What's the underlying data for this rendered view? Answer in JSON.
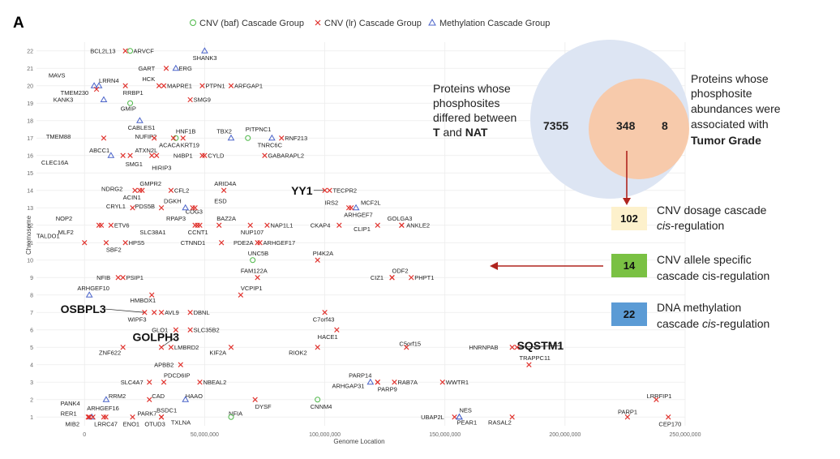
{
  "panel_label": "A",
  "chart_data": {
    "type": "scatter",
    "title": "",
    "xlabel": "Genome Location",
    "ylabel": "Chromosome",
    "xlim": [
      -20000000,
      250000000
    ],
    "ylim": [
      0.5,
      22.5
    ],
    "x_ticks": [
      0,
      50000000,
      100000000,
      150000000,
      200000000,
      250000000
    ],
    "x_tick_labels": [
      "0",
      "50,000,000",
      "100,000,000",
      "150,000,000",
      "200,000,000",
      "250,000,000"
    ],
    "y_ticks": [
      1,
      2,
      3,
      4,
      5,
      6,
      7,
      8,
      9,
      10,
      11,
      12,
      13,
      14,
      15,
      16,
      17,
      18,
      19,
      20,
      21,
      22
    ],
    "grid": true,
    "legend": [
      {
        "key": "baf",
        "label": "CNV (baf) Cascade Group",
        "color": "#4db848",
        "marker": "circle"
      },
      {
        "key": "lr",
        "label": "CNV (lr) Cascade Group",
        "color": "#e0302b",
        "marker": "x"
      },
      {
        "key": "meth",
        "label": "Methylation Cascade Group",
        "color": "#4a63c9",
        "marker": "triangle"
      }
    ],
    "points": [
      {
        "g": "BCL2L13",
        "x": 17000000,
        "y": 22,
        "t": "lr",
        "ldx": -16000000.0
      },
      {
        "g": "ARVCF",
        "x": 19000000,
        "y": 22,
        "t": "baf",
        "ldx": 0
      },
      {
        "g": "SHANK3",
        "x": 50000000,
        "y": 22,
        "t": "meth",
        "lx": 45000000.0,
        "ly": 21.6
      },
      {
        "g": "GART",
        "x": 34000000,
        "y": 21,
        "t": "lr",
        "ldx": -13000000.0
      },
      {
        "g": "ERG",
        "x": 38000000,
        "y": 21,
        "t": "meth",
        "ldx": -100000.0
      },
      {
        "g": "MAVS",
        "x": 4000000,
        "y": 20,
        "t": "meth",
        "lx": -15000000.0,
        "ly": 20.6
      },
      {
        "g": "LRRN4",
        "x": 6000000,
        "y": 20,
        "t": "meth",
        "lx": 6000000.0,
        "ly": 20.3
      },
      {
        "g": "HCK",
        "x": 31000000,
        "y": 20,
        "t": "lr",
        "lx": 24000000.0,
        "ly": 20.4
      },
      {
        "g": "MAPRE1",
        "x": 33000000,
        "y": 20,
        "t": "lr",
        "ldx": 0
      },
      {
        "g": "PTPN1",
        "x": 49000000,
        "y": 20,
        "t": "lr",
        "ldx": 0
      },
      {
        "g": "ARFGAP1",
        "x": 61000000,
        "y": 20,
        "t": "lr",
        "ldx": 0
      },
      {
        "g": "TMEM230",
        "x": 5000000,
        "y": 19.8,
        "t": "lr",
        "lx": -10000000.0,
        "ly": 19.6
      },
      {
        "g": "RRBP1",
        "x": 17000000,
        "y": 20,
        "t": "lr",
        "lx": 16000000.0,
        "ly": 19.6
      },
      {
        "g": "KANK3",
        "x": 8000000,
        "y": 19.2,
        "t": "meth",
        "lx": -13000000.0,
        "ly": 19.2
      },
      {
        "g": "SMG9",
        "x": 44000000,
        "y": 19.2,
        "t": "lr",
        "ldx": 0
      },
      {
        "g": "GMIP",
        "x": 19000000,
        "y": 19,
        "t": "baf",
        "lx": 15000000.0,
        "ly": 18.7
      },
      {
        "g": "CABLES1",
        "x": 23000000,
        "y": 18,
        "t": "meth",
        "lx": 18000000.0,
        "ly": 17.6
      },
      {
        "g": "HNF1B",
        "x": 38000000,
        "y": 17,
        "t": "baf",
        "lx": 38000000.0,
        "ly": 17.4
      },
      {
        "g": "TMEM88",
        "x": 8000000,
        "y": 17,
        "t": "lr",
        "lx": -16000000.0,
        "ly": 17.1
      },
      {
        "g": "NUFIP2",
        "x": 29000000,
        "y": 17,
        "t": "lr",
        "lx": 21000000.0,
        "ly": 17.1
      },
      {
        "g": "ACACA",
        "x": 37000000,
        "y": 17,
        "t": "lr",
        "lx": 31000000.0,
        "ly": 16.6
      },
      {
        "g": "KRT19",
        "x": 41000000,
        "y": 17,
        "t": "lr",
        "lx": 40000000.0,
        "ly": 16.6
      },
      {
        "g": "TBX2",
        "x": 61000000,
        "y": 17,
        "t": "meth",
        "lx": 55000000.0,
        "ly": 17.4
      },
      {
        "g": "PITPNC1",
        "x": 68000000,
        "y": 17,
        "t": "baf",
        "lx": 67000000.0,
        "ly": 17.5
      },
      {
        "g": "TNRC6C",
        "x": 78000000,
        "y": 17,
        "t": "meth",
        "lx": 72000000.0,
        "ly": 16.6
      },
      {
        "g": "RNF213",
        "x": 82000000,
        "y": 17,
        "t": "lr",
        "ldx": 0
      },
      {
        "g": "ABCC1",
        "x": 16000000,
        "y": 16,
        "t": "lr",
        "lx": 2000000.0,
        "ly": 16.3
      },
      {
        "g": "ATXN2L",
        "x": 28000000,
        "y": 16,
        "t": "lr",
        "lx": 21000000.0,
        "ly": 16.3
      },
      {
        "g": "N4BP1",
        "x": 49000000,
        "y": 16,
        "t": "lr",
        "lx": 37000000.0,
        "ly": 16
      },
      {
        "g": "CYLD",
        "x": 50000000,
        "y": 16,
        "t": "lr",
        "ldx": 0
      },
      {
        "g": "GABARAPL2",
        "x": 75000000,
        "y": 16,
        "t": "lr",
        "ldx": 0
      },
      {
        "g": "CLEC16A",
        "x": 11000000,
        "y": 16,
        "t": "meth",
        "lx": -18000000.0,
        "ly": 15.6
      },
      {
        "g": "SMG1",
        "x": 19000000,
        "y": 16,
        "t": "lr",
        "lx": 17000000.0,
        "ly": 15.5
      },
      {
        "g": "HIRIP3",
        "x": 30000000,
        "y": 16,
        "t": "lr",
        "lx": 28000000.0,
        "ly": 15.3
      },
      {
        "g": "NDRG2",
        "x": 21000000,
        "y": 14,
        "t": "lr",
        "lx": 7000000.0,
        "ly": 14.1
      },
      {
        "g": "GMPR2",
        "x": 24000000,
        "y": 14,
        "t": "lr",
        "lx": 23000000.0,
        "ly": 14.4
      },
      {
        "g": "CFL2",
        "x": 36000000,
        "y": 14,
        "t": "lr",
        "ldx": 0
      },
      {
        "g": "ARID4A",
        "x": 58000000,
        "y": 14,
        "t": "lr",
        "lx": 54000000.0,
        "ly": 14.4
      },
      {
        "g": "YY1",
        "x": 100000000,
        "y": 14,
        "t": "lr",
        "big": true,
        "lx": 86000000.0,
        "ly": 14
      },
      {
        "g": "TECPR2",
        "x": 102000000,
        "y": 14,
        "t": "lr",
        "ldx": 0
      },
      {
        "g": "ACIN1",
        "x": 23000000,
        "y": 14,
        "t": "lr",
        "lx": 16000000.0,
        "ly": 13.6
      },
      {
        "g": "CRYL1",
        "x": 20000000,
        "y": 13,
        "t": "lr",
        "lx": 9000000.0,
        "ly": 13.1
      },
      {
        "g": "PDS5B",
        "x": 32000000,
        "y": 13,
        "t": "lr",
        "lx": 21000000.0,
        "ly": 13.1
      },
      {
        "g": "DGKH",
        "x": 42000000,
        "y": 13,
        "t": "meth",
        "lx": 33000000.0,
        "ly": 13.4
      },
      {
        "g": "ESD",
        "x": 46000000,
        "y": 13,
        "t": "lr",
        "lx": 54000000.0,
        "ly": 13.4
      },
      {
        "g": "COG3",
        "x": 45000000,
        "y": 13,
        "t": "lr",
        "lx": 42000000.0,
        "ly": 12.8
      },
      {
        "g": "IRS2",
        "x": 110000000,
        "y": 13,
        "t": "lr",
        "lx": 100000000.0,
        "ly": 13.3
      },
      {
        "g": "MCF2L",
        "x": 113000000,
        "y": 13,
        "t": "meth",
        "lx": 115000000.0,
        "ly": 13.3
      },
      {
        "g": "ARHGEF7",
        "x": 111000000,
        "y": 13,
        "t": "lr",
        "lx": 108000000.0,
        "ly": 12.6
      },
      {
        "g": "NOP2",
        "x": 6000000,
        "y": 12,
        "t": "lr",
        "lx": -12000000.0,
        "ly": 12.4
      },
      {
        "g": "MLF2",
        "x": 7000000,
        "y": 12,
        "t": "lr",
        "lx": -11000000.0,
        "ly": 11.6
      },
      {
        "g": "ETV6",
        "x": 11000000,
        "y": 12,
        "t": "lr",
        "ldx": 0
      },
      {
        "g": "RPAP3",
        "x": 47000000,
        "y": 12,
        "t": "lr",
        "lx": 34000000.0,
        "ly": 12.4
      },
      {
        "g": "BAZ2A",
        "x": 56000000,
        "y": 12,
        "t": "lr",
        "lx": 55000000.0,
        "ly": 12.4
      },
      {
        "g": "SLC38A1",
        "x": 46000000,
        "y": 12,
        "t": "lr",
        "lx": 23000000.0,
        "ly": 11.6
      },
      {
        "g": "CCNT1",
        "x": 48000000,
        "y": 12,
        "t": "lr",
        "lx": 43000000.0,
        "ly": 11.6
      },
      {
        "g": "NUP107",
        "x": 69000000,
        "y": 12,
        "t": "lr",
        "lx": 65000000.0,
        "ly": 11.6
      },
      {
        "g": "NAP1L1",
        "x": 76000000,
        "y": 12,
        "t": "lr",
        "ldx": 0
      },
      {
        "g": "CKAP4",
        "x": 106000000,
        "y": 12,
        "t": "lr",
        "lx": 94000000.0,
        "ly": 12
      },
      {
        "g": "CLIP1",
        "x": 122000000,
        "y": 12,
        "t": "lr",
        "lx": 112000000.0,
        "ly": 11.8
      },
      {
        "g": "GOLGA3",
        "x": 132000000,
        "y": 12,
        "t": "lr",
        "lx": 126000000.0,
        "ly": 12.4
      },
      {
        "g": "ANKLE2",
        "x": 132000000,
        "y": 12,
        "t": "lr",
        "lx": 134000000.0,
        "ly": 12
      },
      {
        "g": "TALDO1",
        "x": 0,
        "y": 11,
        "t": "lr",
        "lx": -20000000.0,
        "ly": 11.4
      },
      {
        "g": "HPS5",
        "x": 17000000,
        "y": 11,
        "t": "lr",
        "ldx": 0
      },
      {
        "g": "SBF2",
        "x": 9000000,
        "y": 11,
        "t": "lr",
        "lx": 9000000.0,
        "ly": 10.6
      },
      {
        "g": "CTNND1",
        "x": 57000000,
        "y": 11,
        "t": "lr",
        "lx": 40000000.0,
        "ly": 11
      },
      {
        "g": "PDE2A",
        "x": 72000000,
        "y": 11,
        "t": "lr",
        "lx": 62000000.0,
        "ly": 11
      },
      {
        "g": "ARHGEF17",
        "x": 73000000,
        "y": 11,
        "t": "lr",
        "ldx": 0
      },
      {
        "g": "UNC5B",
        "x": 70000000,
        "y": 10,
        "t": "baf",
        "lx": 68000000.0,
        "ly": 10.4
      },
      {
        "g": "PI4K2A",
        "x": 97000000,
        "y": 10,
        "t": "lr",
        "lx": 95000000.0,
        "ly": 10.4
      },
      {
        "g": "NFIB",
        "x": 14000000,
        "y": 9,
        "t": "lr",
        "lx": 5000000.0,
        "ly": 9
      },
      {
        "g": "PSIP1",
        "x": 16000000,
        "y": 9,
        "t": "lr",
        "ldx": 0
      },
      {
        "g": "FAM122A",
        "x": 72000000,
        "y": 9,
        "t": "lr",
        "lx": 65000000.0,
        "ly": 9.4
      },
      {
        "g": "CIZ1",
        "x": 128000000,
        "y": 9,
        "t": "lr",
        "lx": 119000000.0,
        "ly": 9
      },
      {
        "g": "ODF2",
        "x": 128000000,
        "y": 9,
        "t": "lr",
        "lx": 128000000.0,
        "ly": 9.4
      },
      {
        "g": "PHPT1",
        "x": 136000000,
        "y": 9,
        "t": "lr",
        "ldx": 0
      },
      {
        "g": "ARHGEF10",
        "x": 2000000,
        "y": 8,
        "t": "meth",
        "lx": -3000000.0,
        "ly": 8.4
      },
      {
        "g": "VCPIP1",
        "x": 65000000,
        "y": 8,
        "t": "lr",
        "lx": 65000000.0,
        "ly": 8.4
      },
      {
        "g": "HMBOX1",
        "x": 28000000,
        "y": 8,
        "t": "lr",
        "lx": 19000000.0,
        "ly": 7.7
      },
      {
        "g": "OSBPL3",
        "x": 25000000,
        "y": 7,
        "t": "lr",
        "big": true,
        "lx": -10000000.0,
        "ly": 7.2
      },
      {
        "g": "AVL9",
        "x": 32000000,
        "y": 7,
        "t": "lr",
        "ldx": 0
      },
      {
        "g": "DBNL",
        "x": 44000000,
        "y": 7,
        "t": "lr",
        "ldx": 0
      },
      {
        "g": "WIPF3",
        "x": 29000000,
        "y": 7,
        "t": "lr",
        "lx": 18000000.0,
        "ly": 6.6
      },
      {
        "g": "C7orf43",
        "x": 100000000,
        "y": 7,
        "t": "lr",
        "lx": 95000000.0,
        "ly": 6.6
      },
      {
        "g": "GLO1",
        "x": 38000000,
        "y": 6,
        "t": "lr",
        "lx": 28000000.0,
        "ly": 6
      },
      {
        "g": "SLC35B2",
        "x": 44000000,
        "y": 6,
        "t": "lr",
        "ldx": 0
      },
      {
        "g": "HACE1",
        "x": 105000000,
        "y": 6,
        "t": "lr",
        "lx": 97000000.0,
        "ly": 5.6
      },
      {
        "g": "GOLPH3",
        "x": 32000000,
        "y": 5,
        "t": "lr",
        "big": true,
        "lx": 20000000.0,
        "ly": 5.6
      },
      {
        "g": "LMBRD2",
        "x": 36000000,
        "y": 5,
        "t": "lr",
        "ldx": 0
      },
      {
        "g": "KIF2A",
        "x": 61000000,
        "y": 5,
        "t": "lr",
        "lx": 52000000.0,
        "ly": 4.7
      },
      {
        "g": "ZNF622",
        "x": 16000000,
        "y": 5,
        "t": "lr",
        "lx": 6000000.0,
        "ly": 4.7
      },
      {
        "g": "RIOK2",
        "x": 97000000,
        "y": 5,
        "t": "lr",
        "lx": 85000000.0,
        "ly": 4.7
      },
      {
        "g": "C5orf15",
        "x": 134000000,
        "y": 5,
        "t": "lr",
        "lx": 131000000.0,
        "ly": 5.2
      },
      {
        "g": "HNRNPAB",
        "x": 178000000,
        "y": 5,
        "t": "lr",
        "lx": 160000000.0,
        "ly": 5
      },
      {
        "g": "SQSTM1",
        "x": 180000000,
        "y": 5,
        "t": "lr",
        "big": true,
        "lx": 180000000.0,
        "ly": 5.1
      },
      {
        "g": "APBB2",
        "x": 40000000,
        "y": 4,
        "t": "lr",
        "lx": 29000000.0,
        "ly": 4
      },
      {
        "g": "TRAPPC11",
        "x": 185000000,
        "y": 4,
        "t": "lr",
        "lx": 181000000.0,
        "ly": 4.4
      },
      {
        "g": "PDCD6IP",
        "x": 33000000,
        "y": 3,
        "t": "lr",
        "lx": 33000000.0,
        "ly": 3.4
      },
      {
        "g": "SLC4A7",
        "x": 27000000,
        "y": 3,
        "t": "lr",
        "lx": 15000000.0,
        "ly": 3
      },
      {
        "g": "NBEAL2",
        "x": 48000000,
        "y": 3,
        "t": "lr",
        "ldx": 0
      },
      {
        "g": "PARP14",
        "x": 122000000,
        "y": 3,
        "t": "lr",
        "lx": 110000000.0,
        "ly": 3.4
      },
      {
        "g": "RAB7A",
        "x": 129000000,
        "y": 3,
        "t": "lr",
        "ldx": 0
      },
      {
        "g": "WWTR1",
        "x": 149000000,
        "y": 3,
        "t": "lr",
        "ldx": 0
      },
      {
        "g": "ARHGAP31",
        "x": 119000000,
        "y": 3,
        "t": "meth",
        "lx": 103000000.0,
        "ly": 2.8
      },
      {
        "g": "PARP9",
        "x": 122000000,
        "y": 3,
        "t": "lr",
        "lx": 122000000.0,
        "ly": 2.6
      },
      {
        "g": "CAD",
        "x": 27000000,
        "y": 2,
        "t": "lr",
        "lx": 28000000.0,
        "ly": 2.2
      },
      {
        "g": "HAAO",
        "x": 42000000,
        "y": 2,
        "t": "meth",
        "lx": 42000000.0,
        "ly": 2.2
      },
      {
        "g": "RRM2",
        "x": 9000000,
        "y": 2,
        "t": "meth",
        "lx": 10000000.0,
        "ly": 2.2
      },
      {
        "g": "DYSF",
        "x": 71000000,
        "y": 2,
        "t": "lr",
        "lx": 71000000.0,
        "ly": 1.6
      },
      {
        "g": "CNNM4",
        "x": 97000000,
        "y": 2,
        "t": "baf",
        "lx": 94000000.0,
        "ly": 1.6
      },
      {
        "g": "LRRFIP1",
        "x": 238000000,
        "y": 2,
        "t": "lr",
        "lx": 234000000.0,
        "ly": 2.2
      },
      {
        "g": "PANK4",
        "x": 2000000,
        "y": 1,
        "t": "lr",
        "lx": -10000000.0,
        "ly": 1.8
      },
      {
        "g": "ARHGEF16",
        "x": 3000000,
        "y": 1,
        "t": "meth",
        "lx": 1000000.0,
        "ly": 1.5
      },
      {
        "g": "PARK7",
        "x": 8000000,
        "y": 1,
        "t": "lr",
        "lx": 22000000.0,
        "ly": 1.2
      },
      {
        "g": "BSDC1",
        "x": 32000000,
        "y": 1,
        "t": "lr",
        "lx": 30000000.0,
        "ly": 1.4
      },
      {
        "g": "RER1",
        "x": 2000000,
        "y": 1,
        "t": "lr",
        "lx": -10000000.0,
        "ly": 1.2
      },
      {
        "g": "NFIA",
        "x": 61000000,
        "y": 1,
        "t": "baf",
        "lx": 60000000.0,
        "ly": 1.2
      },
      {
        "g": "MIB2",
        "x": 1500000,
        "y": 1,
        "t": "lr",
        "lx": -8000000.0,
        "ly": 0.6
      },
      {
        "g": "LRRC47",
        "x": 3500000,
        "y": 1,
        "t": "lr",
        "lx": 4000000.0,
        "ly": 0.6
      },
      {
        "g": "ENO1",
        "x": 8900000,
        "y": 1,
        "t": "lr",
        "lx": 16000000.0,
        "ly": 0.6
      },
      {
        "g": "OTUD3",
        "x": 20000000,
        "y": 1,
        "t": "lr",
        "lx": 25000000.0,
        "ly": 0.6
      },
      {
        "g": "TXLNA",
        "x": 32000000,
        "y": 1,
        "t": "lr",
        "lx": 36000000.0,
        "ly": 0.7
      },
      {
        "g": "UBAP2L",
        "x": 154000000,
        "y": 1,
        "t": "lr",
        "lx": 140000000.0,
        "ly": 1
      },
      {
        "g": "NES",
        "x": 156000000,
        "y": 1,
        "t": "meth",
        "lx": 156000000.0,
        "ly": 1.4
      },
      {
        "g": "PEAR1",
        "x": 156000000,
        "y": 1,
        "t": "meth",
        "lx": 155000000.0,
        "ly": 0.7
      },
      {
        "g": "RASAL2",
        "x": 178000000,
        "y": 1,
        "t": "lr",
        "lx": 168000000.0,
        "ly": 0.7
      },
      {
        "g": "PARP1",
        "x": 226000000,
        "y": 1,
        "t": "lr",
        "lx": 222000000.0,
        "ly": 1.3
      },
      {
        "g": "CEP170",
        "x": 243000000,
        "y": 1,
        "t": "lr",
        "lx": 239000000.0,
        "ly": 0.6
      }
    ]
  },
  "venn": {
    "left_text": [
      "Proteins whose",
      "phosphosites",
      "differed between"
    ],
    "left_text_last_pre": "",
    "left_bold_1": "T",
    "left_mid": " and ",
    "left_bold_2": "NAT",
    "right_text": [
      "Proteins whose",
      "phosphosite",
      "abundances were",
      "associated with"
    ],
    "right_bold": "Tumor Grade",
    "left_only": "7355",
    "overlap": "348",
    "right_only": "8",
    "left_color": "#dde5f3",
    "right_color": "#f8c8a5"
  },
  "cascade_boxes": [
    {
      "value": "102",
      "color": "#fdf1cc",
      "line1": "CNV dosage cascade",
      "line2_italic": "cis",
      "line2_rest": "-regulation"
    },
    {
      "value": "14",
      "color": "#7ac143",
      "line1": "CNV allele specific",
      "line2_italic": "",
      "line2_rest": "cascade cis-regulation"
    },
    {
      "value": "22",
      "color": "#5b9bd5",
      "line1": "DNA methylation",
      "line2_italic": "cis",
      "line2_rest": "-regulation",
      "line2_pre": "cascade "
    }
  ],
  "arrow_color": "#b0251f"
}
